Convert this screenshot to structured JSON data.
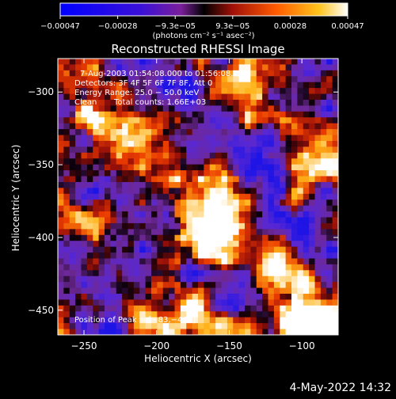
{
  "chart_data": {
    "type": "heatmap",
    "title": "Reconstructed RHESSI Image",
    "xlabel": "Heliocentric X (arcsec)",
    "ylabel": "Heliocentric Y (arcsec)",
    "xlim": [
      -268,
      -75
    ],
    "ylim": [
      -467,
      -277
    ],
    "x_ticks": [
      -250,
      -200,
      -150,
      -100
    ],
    "x_tick_labels": [
      "−250",
      "−200",
      "−150",
      "−100"
    ],
    "y_ticks": [
      -300,
      -350,
      -400,
      -450
    ],
    "y_tick_labels": [
      "−300",
      "−350",
      "−400",
      "−450"
    ],
    "colorbar": {
      "range": [
        -0.00047,
        0.00047
      ],
      "tick_labels": [
        "−0.00047",
        "−0.00028",
        "−9.3e−05",
        "9.3e−05",
        "0.00028",
        "0.00047"
      ],
      "unit_label": "(photons cm⁻² s⁻¹ asec⁻²)",
      "colors": [
        "#1a10ff",
        "#5f18d8",
        "#8a2aa0",
        "#c81e10",
        "#ff6a00",
        "#ffc51e",
        "#ffffff"
      ]
    },
    "annotations": {
      "time_range": "7‑Aug‑2003 01:54:08.000 to 01:56:08.000",
      "detectors": "Detectors: 3F 4F 5F 6F 7F 8F, Att 0",
      "energy_range": "Energy Range: 25.0 − 50.0 keV",
      "algorithm": "Clean",
      "total_counts": "Total counts: 1.66E+03",
      "peak_position": "Position of Peak = [−83,−448]"
    },
    "peak": [
      -83,
      -448
    ],
    "grid": false,
    "legend": "none"
  },
  "footer": {
    "date_stamp": "4‑May‑2022 14:32"
  }
}
